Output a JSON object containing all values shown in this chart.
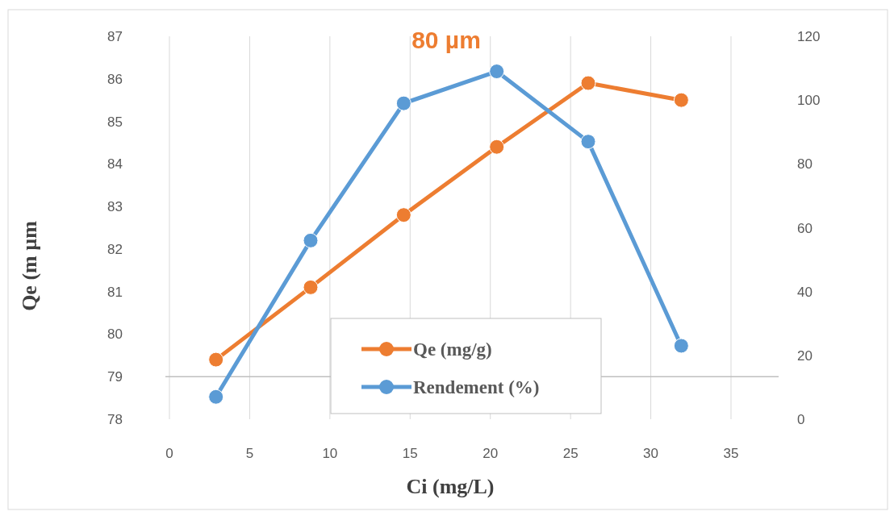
{
  "chart_data": {
    "type": "line",
    "title": "80 µm",
    "xlabel": "Ci (mg/L)",
    "ylabel": "Qe (m µm",
    "xlim": [
      0,
      35
    ],
    "xticks": [
      0,
      5,
      10,
      15,
      20,
      25,
      30,
      35
    ],
    "ylim": [
      78,
      87
    ],
    "yticks": [
      78,
      79,
      80,
      81,
      82,
      83,
      84,
      85,
      86,
      87
    ],
    "y2lim": [
      0,
      120
    ],
    "y2ticks": [
      0,
      20,
      40,
      60,
      80,
      100,
      120
    ],
    "grid": "x",
    "ref_lines": [
      {
        "axis": "y",
        "value": 79,
        "color": "#bfbfbf"
      }
    ],
    "legend": "bottom",
    "marker": "circle",
    "line_style": "solid",
    "series": [
      {
        "name": "Qe (mg/g)",
        "color": "#ed7d31",
        "x": [
          2.9,
          8.8,
          14.6,
          20.4,
          26.1,
          31.9
        ],
        "values": [
          79.4,
          81.1,
          82.8,
          84.4,
          85.9,
          85.5
        ]
      },
      {
        "name": "Rendement (%)",
        "color": "#5b9bd5",
        "axis": "y2",
        "x": [
          2.9,
          8.8,
          14.6,
          20.4,
          26.1,
          31.9
        ],
        "values": [
          7,
          56,
          99,
          109,
          87,
          23
        ]
      }
    ]
  }
}
